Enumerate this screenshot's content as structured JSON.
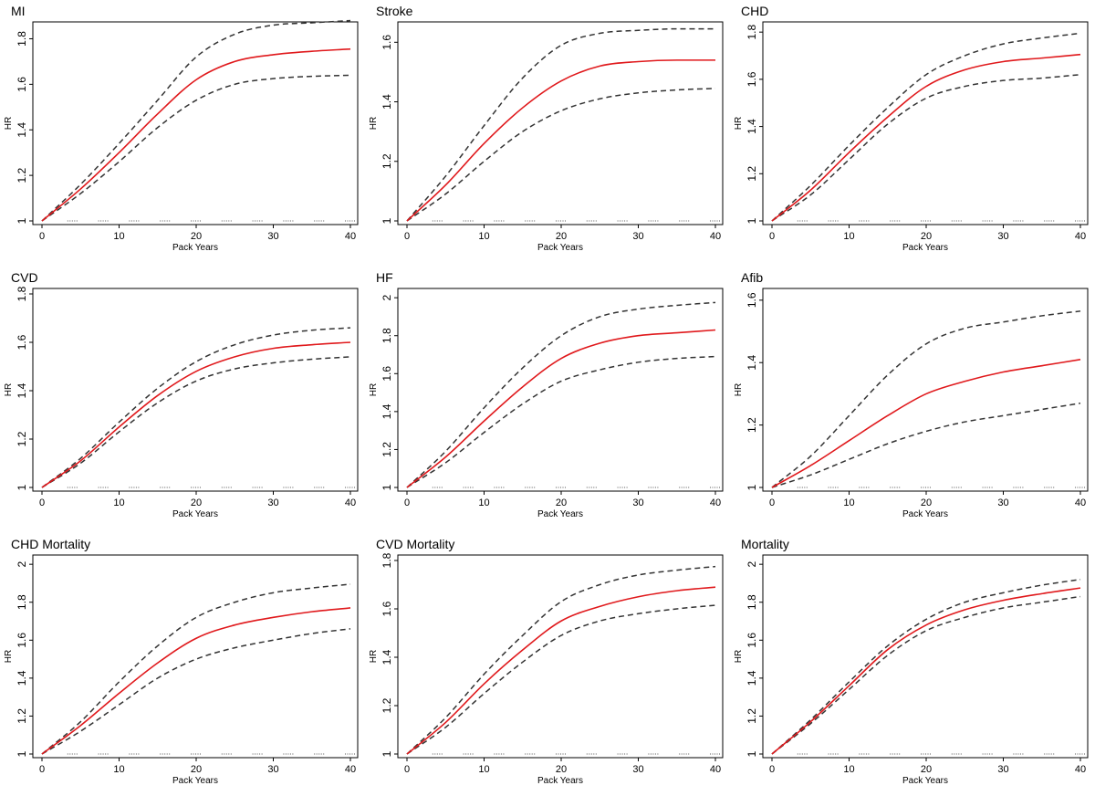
{
  "colors": {
    "estimate": "#e0191c",
    "ci": "#333333",
    "frame": "#000000",
    "rug": "#555555"
  },
  "chart_data": [
    {
      "type": "line",
      "title": "MI",
      "xlabel": "Pack Years",
      "ylabel": "HR",
      "xlim": [
        0,
        40
      ],
      "ylim": [
        1,
        1.85
      ],
      "xticks": [
        0,
        10,
        20,
        30,
        40
      ],
      "xtick_labels": [
        "0",
        "10",
        "20",
        "30",
        "40"
      ],
      "yticks": [
        1,
        1.2,
        1.4,
        1.6,
        1.8
      ],
      "ytick_labels": [
        "1",
        "1.2",
        "1.4",
        "1.6",
        "1.8"
      ],
      "x": [
        0,
        5,
        10,
        15,
        20,
        25,
        30,
        35,
        40
      ],
      "series": [
        {
          "name": "HR",
          "style": "solid",
          "values": [
            1.0,
            1.14,
            1.3,
            1.47,
            1.62,
            1.7,
            1.73,
            1.745,
            1.755
          ]
        },
        {
          "name": "Upper 95% CI",
          "style": "dashed",
          "values": [
            1.0,
            1.16,
            1.34,
            1.53,
            1.72,
            1.82,
            1.86,
            1.87,
            1.88
          ]
        },
        {
          "name": "Lower 95% CI",
          "style": "dashed",
          "values": [
            1.0,
            1.12,
            1.26,
            1.41,
            1.53,
            1.6,
            1.625,
            1.635,
            1.64
          ]
        }
      ],
      "rug": [
        4,
        8,
        12,
        16,
        20,
        24,
        28,
        32,
        36,
        40
      ]
    },
    {
      "type": "line",
      "title": "Stroke",
      "xlabel": "Pack Years",
      "ylabel": "HR",
      "xlim": [
        0,
        40
      ],
      "ylim": [
        1,
        1.65
      ],
      "xticks": [
        0,
        10,
        20,
        30,
        40
      ],
      "xtick_labels": [
        "0",
        "10",
        "20",
        "30",
        "40"
      ],
      "yticks": [
        1,
        1.2,
        1.4,
        1.6
      ],
      "ytick_labels": [
        "1",
        "1.2",
        "1.4",
        "1.6"
      ],
      "x": [
        0,
        5,
        10,
        15,
        20,
        25,
        30,
        35,
        40
      ],
      "series": [
        {
          "name": "HR",
          "style": "solid",
          "values": [
            1.0,
            1.12,
            1.26,
            1.38,
            1.47,
            1.52,
            1.535,
            1.54,
            1.54
          ]
        },
        {
          "name": "Upper 95% CI",
          "style": "dashed",
          "values": [
            1.0,
            1.15,
            1.32,
            1.48,
            1.59,
            1.63,
            1.64,
            1.645,
            1.645
          ]
        },
        {
          "name": "Lower 95% CI",
          "style": "dashed",
          "values": [
            1.0,
            1.09,
            1.2,
            1.3,
            1.37,
            1.41,
            1.43,
            1.44,
            1.445
          ]
        }
      ],
      "rug": [
        4,
        8,
        12,
        16,
        20,
        24,
        28,
        32,
        36,
        40
      ]
    },
    {
      "type": "line",
      "title": "CHD",
      "xlabel": "Pack Years",
      "ylabel": "HR",
      "xlim": [
        0,
        40
      ],
      "ylim": [
        1,
        1.82
      ],
      "xticks": [
        0,
        10,
        20,
        30,
        40
      ],
      "xtick_labels": [
        "0",
        "10",
        "20",
        "30",
        "40"
      ],
      "yticks": [
        1,
        1.2,
        1.4,
        1.6,
        1.8
      ],
      "ytick_labels": [
        "1",
        "1.2",
        "1.4",
        "1.6",
        "1.8"
      ],
      "x": [
        0,
        5,
        10,
        15,
        20,
        25,
        30,
        35,
        40
      ],
      "series": [
        {
          "name": "HR",
          "style": "solid",
          "values": [
            1.0,
            1.13,
            1.29,
            1.44,
            1.57,
            1.64,
            1.675,
            1.69,
            1.705
          ]
        },
        {
          "name": "Upper 95% CI",
          "style": "dashed",
          "values": [
            1.0,
            1.15,
            1.32,
            1.48,
            1.62,
            1.7,
            1.75,
            1.775,
            1.795
          ]
        },
        {
          "name": "Lower 95% CI",
          "style": "dashed",
          "values": [
            1.0,
            1.11,
            1.26,
            1.41,
            1.52,
            1.57,
            1.595,
            1.605,
            1.62
          ]
        }
      ],
      "rug": [
        4,
        8,
        12,
        16,
        20,
        24,
        28,
        32,
        36,
        40
      ]
    },
    {
      "type": "line",
      "title": "CVD",
      "xlabel": "Pack Years",
      "ylabel": "HR",
      "xlim": [
        0,
        40
      ],
      "ylim": [
        1,
        1.8
      ],
      "xticks": [
        0,
        10,
        20,
        30,
        40
      ],
      "xtick_labels": [
        "0",
        "10",
        "20",
        "30",
        "40"
      ],
      "yticks": [
        1,
        1.2,
        1.4,
        1.6,
        1.8
      ],
      "ytick_labels": [
        "1",
        "1.2",
        "1.4",
        "1.6",
        "1.8"
      ],
      "x": [
        0,
        5,
        10,
        15,
        20,
        25,
        30,
        35,
        40
      ],
      "series": [
        {
          "name": "HR",
          "style": "solid",
          "values": [
            1.0,
            1.11,
            1.25,
            1.38,
            1.48,
            1.54,
            1.575,
            1.59,
            1.6
          ]
        },
        {
          "name": "Upper 95% CI",
          "style": "dashed",
          "values": [
            1.0,
            1.12,
            1.27,
            1.41,
            1.52,
            1.59,
            1.63,
            1.65,
            1.66
          ]
        },
        {
          "name": "Lower 95% CI",
          "style": "dashed",
          "values": [
            1.0,
            1.1,
            1.23,
            1.35,
            1.44,
            1.49,
            1.515,
            1.53,
            1.54
          ]
        }
      ],
      "rug": [
        4,
        8,
        12,
        16,
        20,
        24,
        28,
        32,
        36,
        40
      ]
    },
    {
      "type": "line",
      "title": "HF",
      "xlabel": "Pack Years",
      "ylabel": "HR",
      "xlim": [
        0,
        40
      ],
      "ylim": [
        1,
        2.02
      ],
      "xticks": [
        0,
        10,
        20,
        30,
        40
      ],
      "xtick_labels": [
        "0",
        "10",
        "20",
        "30",
        "40"
      ],
      "yticks": [
        1,
        1.2,
        1.4,
        1.6,
        1.8,
        2
      ],
      "ytick_labels": [
        "1",
        "1.2",
        "1.4",
        "1.6",
        "1.8",
        "2"
      ],
      "x": [
        0,
        5,
        10,
        15,
        20,
        25,
        30,
        35,
        40
      ],
      "series": [
        {
          "name": "HR",
          "style": "solid",
          "values": [
            1.0,
            1.16,
            1.35,
            1.53,
            1.68,
            1.76,
            1.8,
            1.815,
            1.83
          ]
        },
        {
          "name": "Upper 95% CI",
          "style": "dashed",
          "values": [
            1.0,
            1.19,
            1.42,
            1.63,
            1.8,
            1.9,
            1.94,
            1.96,
            1.975
          ]
        },
        {
          "name": "Lower 95% CI",
          "style": "dashed",
          "values": [
            1.0,
            1.13,
            1.29,
            1.44,
            1.56,
            1.62,
            1.66,
            1.68,
            1.69
          ]
        }
      ],
      "rug": [
        4,
        8,
        12,
        16,
        20,
        24,
        28,
        32,
        36,
        40
      ]
    },
    {
      "type": "line",
      "title": "Afib",
      "xlabel": "Pack Years",
      "ylabel": "HR",
      "xlim": [
        0,
        40
      ],
      "ylim": [
        1,
        1.62
      ],
      "xticks": [
        0,
        10,
        20,
        30,
        40
      ],
      "xtick_labels": [
        "0",
        "10",
        "20",
        "30",
        "40"
      ],
      "yticks": [
        1,
        1.2,
        1.4,
        1.6
      ],
      "ytick_labels": [
        "1",
        "1.2",
        "1.4",
        "1.6"
      ],
      "x": [
        0,
        5,
        10,
        15,
        20,
        25,
        30,
        35,
        40
      ],
      "series": [
        {
          "name": "HR",
          "style": "solid",
          "values": [
            1.0,
            1.07,
            1.15,
            1.23,
            1.3,
            1.34,
            1.37,
            1.39,
            1.41
          ]
        },
        {
          "name": "Upper 95% CI",
          "style": "dashed",
          "values": [
            1.0,
            1.1,
            1.23,
            1.36,
            1.46,
            1.51,
            1.53,
            1.55,
            1.565
          ]
        },
        {
          "name": "Lower 95% CI",
          "style": "dashed",
          "values": [
            1.0,
            1.04,
            1.09,
            1.14,
            1.18,
            1.21,
            1.23,
            1.25,
            1.27
          ]
        }
      ],
      "rug": [
        4,
        8,
        12,
        16,
        20,
        24,
        28,
        32,
        36,
        40
      ]
    },
    {
      "type": "line",
      "title": "CHD Mortality",
      "xlabel": "Pack Years",
      "ylabel": "HR",
      "xlim": [
        0,
        40
      ],
      "ylim": [
        1,
        2.02
      ],
      "xticks": [
        0,
        10,
        20,
        30,
        40
      ],
      "xtick_labels": [
        "0",
        "10",
        "20",
        "30",
        "40"
      ],
      "yticks": [
        1,
        1.2,
        1.4,
        1.6,
        1.8,
        2
      ],
      "ytick_labels": [
        "1",
        "1.2",
        "1.4",
        "1.6",
        "1.8",
        "2"
      ],
      "x": [
        0,
        5,
        10,
        15,
        20,
        25,
        30,
        35,
        40
      ],
      "series": [
        {
          "name": "HR",
          "style": "solid",
          "values": [
            1.0,
            1.15,
            1.32,
            1.48,
            1.61,
            1.68,
            1.72,
            1.75,
            1.77
          ]
        },
        {
          "name": "Upper 95% CI",
          "style": "dashed",
          "values": [
            1.0,
            1.17,
            1.38,
            1.57,
            1.72,
            1.8,
            1.85,
            1.875,
            1.895
          ]
        },
        {
          "name": "Lower 95% CI",
          "style": "dashed",
          "values": [
            1.0,
            1.12,
            1.26,
            1.4,
            1.5,
            1.56,
            1.6,
            1.635,
            1.66
          ]
        }
      ],
      "rug": [
        4,
        8,
        12,
        16,
        20,
        24,
        28,
        32,
        36,
        40
      ]
    },
    {
      "type": "line",
      "title": "CVD Mortality",
      "xlabel": "Pack Years",
      "ylabel": "HR",
      "xlim": [
        0,
        40
      ],
      "ylim": [
        1,
        1.8
      ],
      "xticks": [
        0,
        10,
        20,
        30,
        40
      ],
      "xtick_labels": [
        "0",
        "10",
        "20",
        "30",
        "40"
      ],
      "yticks": [
        1,
        1.2,
        1.4,
        1.6,
        1.8
      ],
      "ytick_labels": [
        "1",
        "1.2",
        "1.4",
        "1.6",
        "1.8"
      ],
      "x": [
        0,
        5,
        10,
        15,
        20,
        25,
        30,
        35,
        40
      ],
      "series": [
        {
          "name": "HR",
          "style": "solid",
          "values": [
            1.0,
            1.13,
            1.29,
            1.43,
            1.55,
            1.61,
            1.65,
            1.675,
            1.69
          ]
        },
        {
          "name": "Upper 95% CI",
          "style": "dashed",
          "values": [
            1.0,
            1.15,
            1.33,
            1.49,
            1.63,
            1.7,
            1.74,
            1.76,
            1.775
          ]
        },
        {
          "name": "Lower 95% CI",
          "style": "dashed",
          "values": [
            1.0,
            1.11,
            1.25,
            1.38,
            1.49,
            1.55,
            1.58,
            1.6,
            1.615
          ]
        }
      ],
      "rug": [
        4,
        8,
        12,
        16,
        20,
        24,
        28,
        32,
        36,
        40
      ]
    },
    {
      "type": "line",
      "title": "Mortality",
      "xlabel": "Pack Years",
      "ylabel": "HR",
      "xlim": [
        0,
        40
      ],
      "ylim": [
        1,
        2.02
      ],
      "xticks": [
        0,
        10,
        20,
        30,
        40
      ],
      "xtick_labels": [
        "0",
        "10",
        "20",
        "30",
        "40"
      ],
      "yticks": [
        1,
        1.2,
        1.4,
        1.6,
        1.8,
        2
      ],
      "ytick_labels": [
        "1",
        "1.2",
        "1.4",
        "1.6",
        "1.8",
        "2"
      ],
      "x": [
        0,
        5,
        10,
        15,
        20,
        25,
        30,
        35,
        40
      ],
      "series": [
        {
          "name": "HR",
          "style": "solid",
          "values": [
            1.0,
            1.17,
            1.36,
            1.55,
            1.68,
            1.76,
            1.81,
            1.845,
            1.875
          ]
        },
        {
          "name": "Upper 95% CI",
          "style": "dashed",
          "values": [
            1.0,
            1.18,
            1.38,
            1.57,
            1.71,
            1.8,
            1.85,
            1.89,
            1.92
          ]
        },
        {
          "name": "Lower 95% CI",
          "style": "dashed",
          "values": [
            1.0,
            1.16,
            1.34,
            1.52,
            1.65,
            1.72,
            1.77,
            1.8,
            1.83
          ]
        }
      ],
      "rug": [
        4,
        8,
        12,
        16,
        20,
        24,
        28,
        32,
        36,
        40
      ]
    }
  ]
}
